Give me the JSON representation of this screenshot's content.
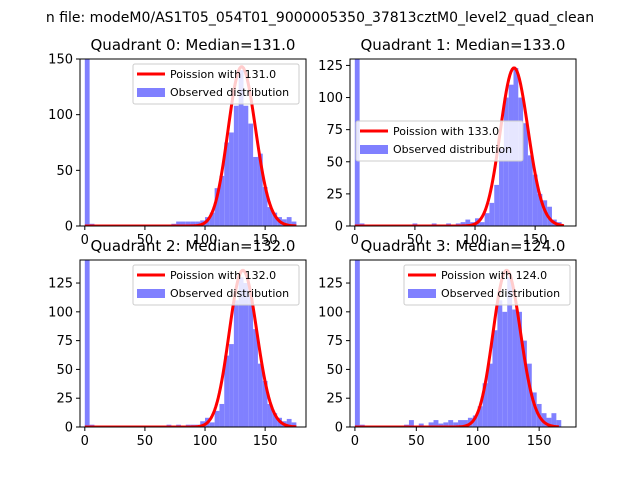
{
  "figure": {
    "suptitle": "n file: modeM0/AS1T05_054T01_9000005350_37813cztM0_level2_quad_clean"
  },
  "chart_data": [
    {
      "type": "bar",
      "title": "Quadrant 0: Median=131.0",
      "xlabel": "",
      "ylabel": "",
      "xlim": [
        -4,
        184
      ],
      "ylim": [
        0,
        150
      ],
      "xticks": [
        0,
        50,
        100,
        150
      ],
      "yticks": [
        0,
        50,
        100,
        150
      ],
      "legend_position": "upper-right",
      "series": [
        {
          "name": "Poission with 131.0",
          "kind": "line",
          "color": "#ff0000",
          "lambda": 131.0,
          "x_range": [
            0,
            176
          ],
          "peak": 143
        },
        {
          "name": "Observed distribution",
          "kind": "histogram",
          "color": "#8080ff",
          "bin_width": 4,
          "bins": [
            {
              "x": 0,
              "y": 150
            },
            {
              "x": 4,
              "y": 2
            },
            {
              "x": 72,
              "y": 2
            },
            {
              "x": 76,
              "y": 4
            },
            {
              "x": 80,
              "y": 4
            },
            {
              "x": 84,
              "y": 4
            },
            {
              "x": 88,
              "y": 4
            },
            {
              "x": 92,
              "y": 4
            },
            {
              "x": 96,
              "y": 5
            },
            {
              "x": 100,
              "y": 8
            },
            {
              "x": 104,
              "y": 12
            },
            {
              "x": 108,
              "y": 34
            },
            {
              "x": 112,
              "y": 45
            },
            {
              "x": 116,
              "y": 75
            },
            {
              "x": 120,
              "y": 84
            },
            {
              "x": 124,
              "y": 108
            },
            {
              "x": 128,
              "y": 140
            },
            {
              "x": 132,
              "y": 108
            },
            {
              "x": 136,
              "y": 92
            },
            {
              "x": 140,
              "y": 62
            },
            {
              "x": 144,
              "y": 65
            },
            {
              "x": 148,
              "y": 35
            },
            {
              "x": 152,
              "y": 17
            },
            {
              "x": 156,
              "y": 12
            },
            {
              "x": 160,
              "y": 8
            },
            {
              "x": 164,
              "y": 6
            },
            {
              "x": 168,
              "y": 8
            },
            {
              "x": 172,
              "y": 4
            }
          ]
        }
      ]
    },
    {
      "type": "bar",
      "title": "Quadrant 1: Median=133.0",
      "xlabel": "",
      "ylabel": "",
      "xlim": [
        -4,
        184
      ],
      "ylim": [
        0,
        130
      ],
      "xticks": [
        0,
        50,
        100,
        150
      ],
      "yticks": [
        0,
        25,
        50,
        75,
        100,
        125
      ],
      "legend_position": "center-left",
      "series": [
        {
          "name": "Poission with 133.0",
          "kind": "line",
          "color": "#ff0000",
          "lambda": 133.0,
          "x_range": [
            0,
            174
          ],
          "peak": 123
        },
        {
          "name": "Observed distribution",
          "kind": "histogram",
          "color": "#8080ff",
          "bin_width": 4,
          "bins": [
            {
              "x": 0,
              "y": 130
            },
            {
              "x": 4,
              "y": 2
            },
            {
              "x": 48,
              "y": 2
            },
            {
              "x": 64,
              "y": 2
            },
            {
              "x": 76,
              "y": 2
            },
            {
              "x": 84,
              "y": 2
            },
            {
              "x": 88,
              "y": 3
            },
            {
              "x": 92,
              "y": 5
            },
            {
              "x": 96,
              "y": 3
            },
            {
              "x": 100,
              "y": 6
            },
            {
              "x": 104,
              "y": 3
            },
            {
              "x": 108,
              "y": 10
            },
            {
              "x": 112,
              "y": 18
            },
            {
              "x": 116,
              "y": 32
            },
            {
              "x": 120,
              "y": 60
            },
            {
              "x": 124,
              "y": 100
            },
            {
              "x": 128,
              "y": 110
            },
            {
              "x": 132,
              "y": 123
            },
            {
              "x": 136,
              "y": 100
            },
            {
              "x": 140,
              "y": 80
            },
            {
              "x": 144,
              "y": 55
            },
            {
              "x": 148,
              "y": 40
            },
            {
              "x": 152,
              "y": 25
            },
            {
              "x": 156,
              "y": 20
            },
            {
              "x": 160,
              "y": 15
            },
            {
              "x": 164,
              "y": 5
            },
            {
              "x": 168,
              "y": 3
            }
          ]
        }
      ]
    },
    {
      "type": "bar",
      "title": "Quadrant 2: Median=132.0",
      "xlabel": "",
      "ylabel": "",
      "xlim": [
        -4,
        184
      ],
      "ylim": [
        0,
        145
      ],
      "xticks": [
        0,
        50,
        100,
        150
      ],
      "yticks": [
        0,
        25,
        50,
        75,
        100,
        125
      ],
      "legend_position": "upper-right",
      "series": [
        {
          "name": "Poission with 132.0",
          "kind": "line",
          "color": "#ff0000",
          "lambda": 132.0,
          "x_range": [
            0,
            176
          ],
          "peak": 136
        },
        {
          "name": "Observed distribution",
          "kind": "histogram",
          "color": "#8080ff",
          "bin_width": 4,
          "bins": [
            {
              "x": 0,
              "y": 145
            },
            {
              "x": 4,
              "y": 2
            },
            {
              "x": 68,
              "y": 2
            },
            {
              "x": 76,
              "y": 2
            },
            {
              "x": 84,
              "y": 2
            },
            {
              "x": 88,
              "y": 2
            },
            {
              "x": 92,
              "y": 2
            },
            {
              "x": 96,
              "y": 5
            },
            {
              "x": 100,
              "y": 8
            },
            {
              "x": 104,
              "y": 4
            },
            {
              "x": 108,
              "y": 14
            },
            {
              "x": 112,
              "y": 20
            },
            {
              "x": 116,
              "y": 62
            },
            {
              "x": 120,
              "y": 72
            },
            {
              "x": 124,
              "y": 110
            },
            {
              "x": 128,
              "y": 130
            },
            {
              "x": 132,
              "y": 125
            },
            {
              "x": 136,
              "y": 115
            },
            {
              "x": 140,
              "y": 85
            },
            {
              "x": 144,
              "y": 55
            },
            {
              "x": 148,
              "y": 40
            },
            {
              "x": 152,
              "y": 20
            },
            {
              "x": 156,
              "y": 12
            },
            {
              "x": 160,
              "y": 8
            },
            {
              "x": 164,
              "y": 5
            },
            {
              "x": 168,
              "y": 7
            },
            {
              "x": 172,
              "y": 4
            }
          ]
        }
      ]
    },
    {
      "type": "bar",
      "title": "Quadrant 3: Median=124.0",
      "xlabel": "",
      "ylabel": "",
      "xlim": [
        -4,
        180
      ],
      "ylim": [
        0,
        145
      ],
      "xticks": [
        0,
        50,
        100,
        150
      ],
      "yticks": [
        0,
        25,
        50,
        75,
        100,
        125
      ],
      "legend_position": "upper-right",
      "series": [
        {
          "name": "Poission with 124.0",
          "kind": "line",
          "color": "#ff0000",
          "lambda": 124.0,
          "x_range": [
            0,
            166
          ],
          "peak": 136
        },
        {
          "name": "Observed distribution",
          "kind": "histogram",
          "color": "#8080ff",
          "bin_width": 4,
          "bins": [
            {
              "x": 0,
              "y": 145
            },
            {
              "x": 4,
              "y": 2
            },
            {
              "x": 40,
              "y": 2
            },
            {
              "x": 44,
              "y": 6
            },
            {
              "x": 52,
              "y": 3
            },
            {
              "x": 60,
              "y": 4
            },
            {
              "x": 64,
              "y": 6
            },
            {
              "x": 68,
              "y": 3
            },
            {
              "x": 72,
              "y": 4
            },
            {
              "x": 76,
              "y": 6
            },
            {
              "x": 80,
              "y": 4
            },
            {
              "x": 84,
              "y": 6
            },
            {
              "x": 88,
              "y": 6
            },
            {
              "x": 92,
              "y": 8
            },
            {
              "x": 96,
              "y": 10
            },
            {
              "x": 100,
              "y": 18
            },
            {
              "x": 104,
              "y": 38
            },
            {
              "x": 108,
              "y": 55
            },
            {
              "x": 112,
              "y": 84
            },
            {
              "x": 116,
              "y": 110
            },
            {
              "x": 120,
              "y": 100
            },
            {
              "x": 124,
              "y": 130
            },
            {
              "x": 128,
              "y": 102
            },
            {
              "x": 132,
              "y": 100
            },
            {
              "x": 136,
              "y": 75
            },
            {
              "x": 140,
              "y": 55
            },
            {
              "x": 144,
              "y": 30
            },
            {
              "x": 148,
              "y": 20
            },
            {
              "x": 152,
              "y": 12
            },
            {
              "x": 156,
              "y": 8
            },
            {
              "x": 160,
              "y": 12
            },
            {
              "x": 164,
              "y": 6
            }
          ]
        }
      ]
    }
  ]
}
